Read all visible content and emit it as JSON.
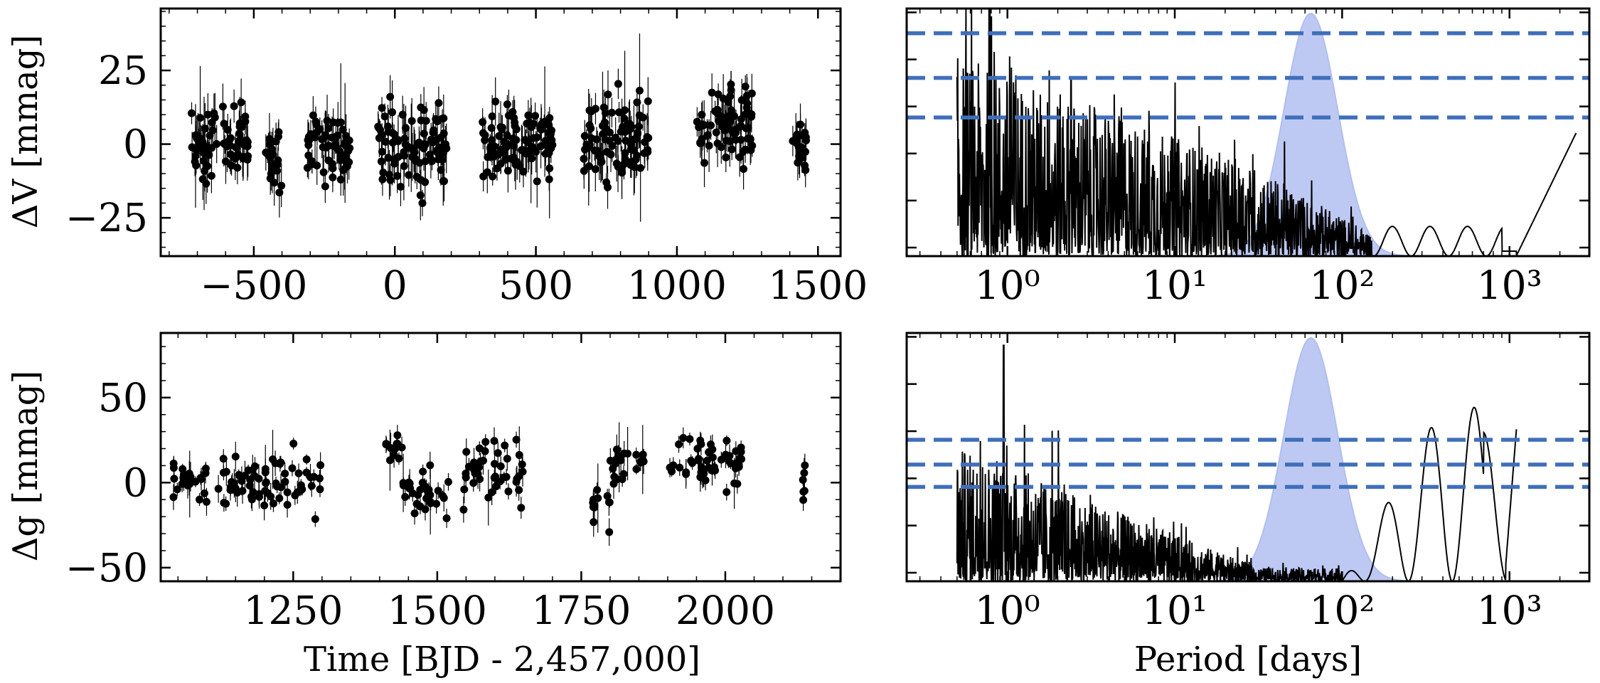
{
  "figure": {
    "xlabel_time": "Time [BJD - 2,457,000]",
    "xlabel_period": "Period [days]"
  },
  "chart_data": [
    {
      "type": "scatter",
      "panel": "top-left",
      "ylabel": "ΔV [mmag]",
      "xlim": [
        -830,
        1580
      ],
      "ylim": [
        -38,
        46
      ],
      "xticks": [
        -500,
        0,
        500,
        1000,
        1500
      ],
      "xtick_labels": [
        "−500",
        "0",
        "500",
        "1000",
        "1500"
      ],
      "yticks": [
        -25,
        0,
        25
      ],
      "ytick_labels": [
        "−25",
        "0",
        "25"
      ],
      "season_clusters": [
        {
          "x_range": [
            -730,
            -630
          ],
          "y_center": 0,
          "spread": 12
        },
        {
          "x_range": [
            -610,
            -520
          ],
          "y_center": 0,
          "spread": 10
        },
        {
          "x_range": [
            -460,
            -400
          ],
          "y_center": -5,
          "spread": 9
        },
        {
          "x_range": [
            -310,
            -160
          ],
          "y_center": 0,
          "spread": 11
        },
        {
          "x_range": [
            -60,
            190
          ],
          "y_center": 0,
          "spread": 10
        },
        {
          "x_range": [
            310,
            560
          ],
          "y_center": 0,
          "spread": 10
        },
        {
          "x_range": [
            670,
            900
          ],
          "y_center": 2,
          "spread": 11
        },
        {
          "x_range": [
            1070,
            1270
          ],
          "y_center": 5,
          "spread": 10
        },
        {
          "x_range": [
            1410,
            1460
          ],
          "y_center": 0,
          "spread": 7
        }
      ],
      "color": "#000000"
    },
    {
      "type": "line",
      "panel": "top-right",
      "xscale": "log",
      "xlim": [
        0.25,
        3000
      ],
      "xticks": [
        1,
        10,
        100,
        1000
      ],
      "xtick_labels": [
        "10⁰",
        "10¹",
        "10²",
        "10³"
      ],
      "ylim": [
        0,
        1
      ],
      "fap_levels": [
        0.9,
        0.72,
        0.56
      ],
      "prior_band": {
        "center_days": 65,
        "log_sigma": 0.16,
        "peak": 0.98,
        "color": "#b7c4f2"
      },
      "features": [
        {
          "period": 2.4,
          "power": 0.72
        },
        {
          "period": 300,
          "power": 0.13
        },
        {
          "period": 430,
          "power": 0.2
        },
        {
          "period": 700,
          "power": 0.15
        },
        {
          "period": 2500,
          "power": 0.5
        }
      ],
      "line_color": "#000000",
      "fap_color": "#3f6fba"
    },
    {
      "type": "scatter",
      "panel": "bottom-left",
      "ylabel": "Δg [mmag]",
      "xlim": [
        1020,
        2200
      ],
      "ylim": [
        -58,
        88
      ],
      "xticks": [
        1250,
        1500,
        1750,
        2000
      ],
      "xtick_labels": [
        "1250",
        "1500",
        "1750",
        "2000"
      ],
      "yticks": [
        -50,
        0,
        50
      ],
      "ytick_labels": [
        "−50",
        "0",
        "50"
      ],
      "season_clusters": [
        {
          "x_range": [
            1040,
            1100
          ],
          "y_center": 0,
          "spread": 12
        },
        {
          "x_range": [
            1120,
            1300
          ],
          "y_center": -2,
          "spread": 14
        },
        {
          "x_range": [
            1410,
            1440
          ],
          "y_center": 20,
          "spread": 5
        },
        {
          "x_range": [
            1440,
            1520
          ],
          "y_center": -5,
          "spread": 15
        },
        {
          "x_range": [
            1540,
            1650
          ],
          "y_center": 5,
          "spread": 15
        },
        {
          "x_range": [
            1770,
            1800
          ],
          "y_center": -15,
          "spread": 10
        },
        {
          "x_range": [
            1800,
            1860
          ],
          "y_center": 12,
          "spread": 12
        },
        {
          "x_range": [
            1900,
            2030
          ],
          "y_center": 10,
          "spread": 13
        },
        {
          "x_range": [
            2130,
            2140
          ],
          "y_center": 0,
          "spread": 12
        }
      ],
      "color": "#000000"
    },
    {
      "type": "line",
      "panel": "bottom-right",
      "xscale": "log",
      "xlim": [
        0.25,
        3000
      ],
      "xticks": [
        1,
        10,
        100,
        1000
      ],
      "xtick_labels": [
        "10⁰",
        "10¹",
        "10²",
        "10³"
      ],
      "ylim": [
        0,
        1
      ],
      "fap_levels": [
        0.57,
        0.47,
        0.38
      ],
      "prior_band": {
        "center_days": 65,
        "log_sigma": 0.16,
        "peak": 0.98,
        "color": "#b7c4f2"
      },
      "features": [
        {
          "period": 0.95,
          "power": 0.95
        },
        {
          "period": 300,
          "power": 0.7
        },
        {
          "period": 550,
          "power": 0.76
        },
        {
          "period": 1000,
          "power": 0.6
        }
      ],
      "line_color": "#000000",
      "fap_color": "#3f6fba"
    }
  ]
}
